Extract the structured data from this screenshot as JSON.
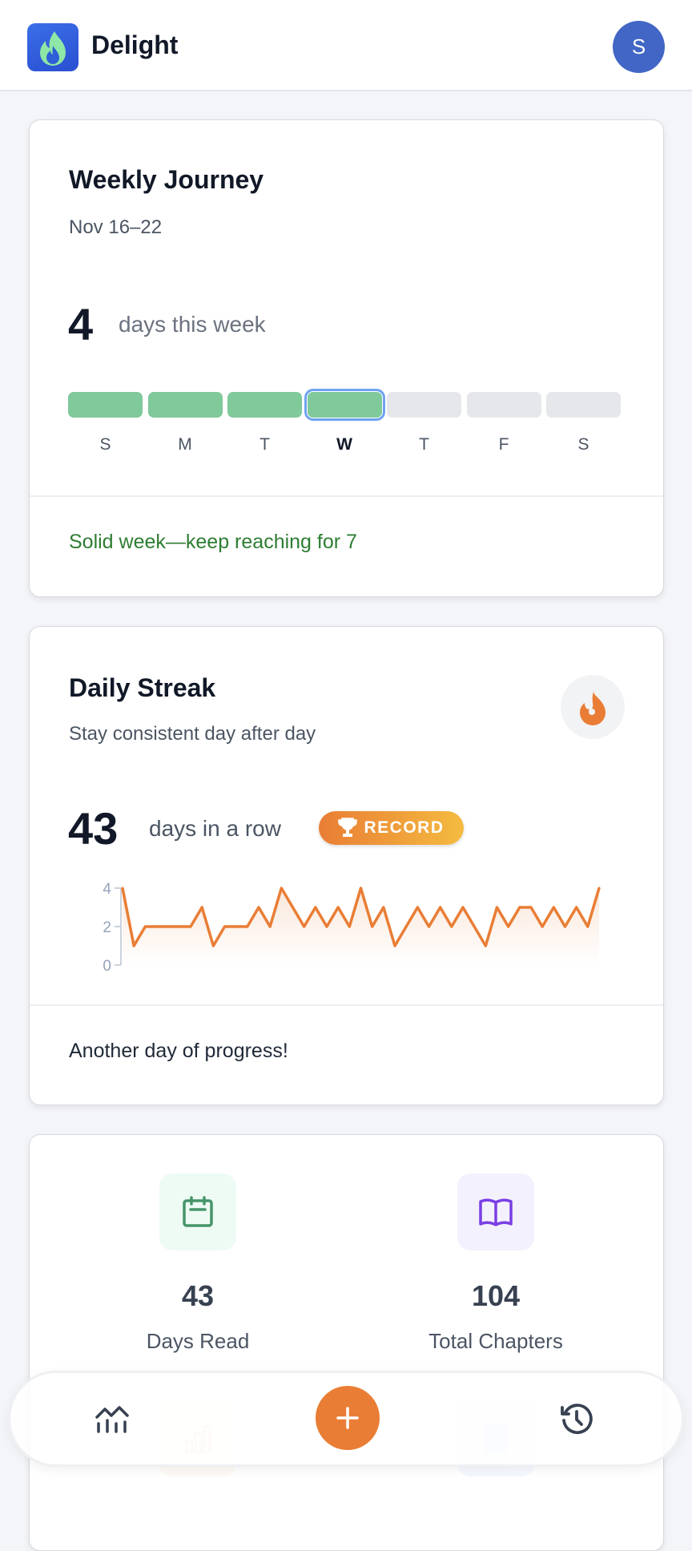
{
  "header": {
    "app_name": "Delight",
    "avatar_initial": "S",
    "logo_icon": "flame-icon"
  },
  "weekly": {
    "title": "Weekly Journey",
    "date_range": "Nov 16–22",
    "count": "4",
    "count_label": "days this week",
    "days": [
      {
        "label": "S",
        "done": true
      },
      {
        "label": "M",
        "done": true
      },
      {
        "label": "T",
        "done": true
      },
      {
        "label": "W",
        "done": true,
        "today": true
      },
      {
        "label": "T",
        "done": false
      },
      {
        "label": "F",
        "done": false
      },
      {
        "label": "S",
        "done": false
      }
    ],
    "message": "Solid week—keep reaching for 7",
    "colors": {
      "done": "#80c99a",
      "empty": "#e5e7eb",
      "today_border": "#6ea3f0",
      "message": "#2e7d32"
    }
  },
  "streak": {
    "title": "Daily Streak",
    "subtitle": "Stay consistent day after day",
    "count": "43",
    "count_label": "days in a row",
    "badge": "RECORD",
    "badge_icon": "trophy-icon",
    "icon": "flame-icon",
    "message": "Another day of progress!"
  },
  "chart_data": {
    "type": "area",
    "ylim": [
      0,
      4
    ],
    "yticks": [
      "0",
      "2",
      "4"
    ],
    "color": "#e97d35",
    "values": [
      4,
      1,
      2,
      2,
      2,
      2,
      2,
      3,
      1,
      2,
      2,
      2,
      3,
      2,
      4,
      3,
      2,
      3,
      2,
      3,
      2,
      4,
      2,
      3,
      1,
      2,
      3,
      2,
      3,
      2,
      3,
      2,
      1,
      3,
      2,
      3,
      3,
      2,
      3,
      2,
      3,
      2,
      4
    ]
  },
  "stats": [
    {
      "value": "43",
      "label": "Days Read",
      "icon": "calendar-icon",
      "color": "#45956a",
      "bg": "#eefbf4"
    },
    {
      "value": "104",
      "label": "Total Chapters",
      "icon": "book-open-icon",
      "color": "#7a3fe4",
      "bg": "#f3f1fd"
    }
  ],
  "nav": {
    "items": [
      {
        "icon": "chart-line-icon"
      },
      {
        "icon": "plus-icon"
      },
      {
        "icon": "history-icon"
      }
    ],
    "accent": "#e97d35"
  }
}
